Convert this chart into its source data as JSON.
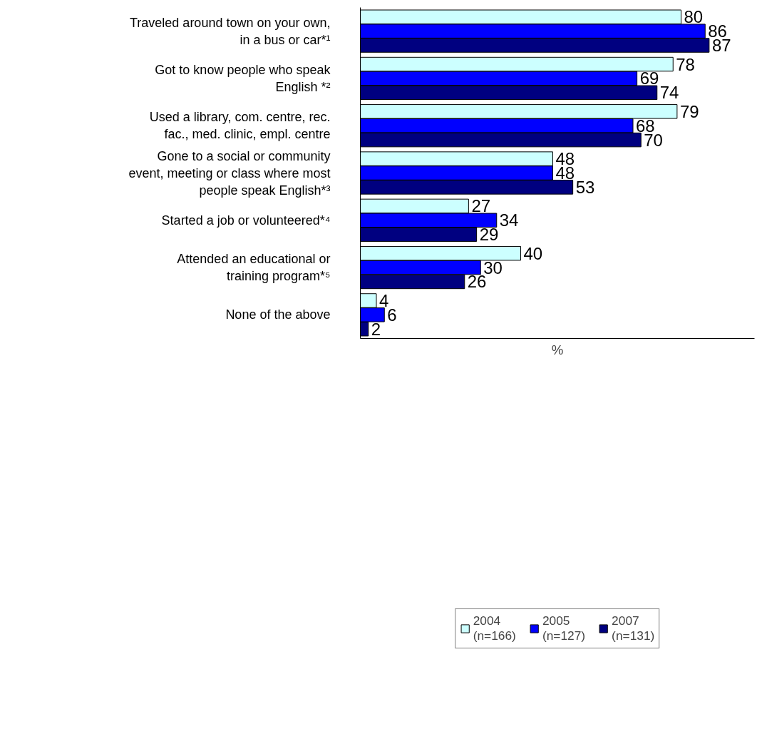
{
  "chart_data": {
    "type": "bar",
    "orientation": "horizontal",
    "xlabel": "%",
    "categories": [
      "Traveled around town on your own, in a bus or car*¹",
      "Got to know people who speak English *²",
      "Used a library, com. centre, rec. fac., med. clinic, empl. centre",
      "Gone to a social or community event, meeting or class where most people speak English*³",
      "Started a job or volunteered*⁴",
      "Attended an educational or training program*⁵",
      "None of the above"
    ],
    "series": [
      {
        "name": "2004\n(n=166)",
        "color": "#ccffff",
        "values": [
          80,
          78,
          79,
          48,
          27,
          40,
          4
        ]
      },
      {
        "name": "2005\n(n=127)",
        "color": "#0000ff",
        "values": [
          86,
          69,
          68,
          48,
          34,
          30,
          6
        ]
      },
      {
        "name": "2007\n(n=131)",
        "color": "#000080",
        "values": [
          87,
          74,
          70,
          53,
          29,
          26,
          2
        ]
      }
    ],
    "data_labels": true,
    "legend": "bottom",
    "grid": false,
    "tick_labels": "y"
  }
}
